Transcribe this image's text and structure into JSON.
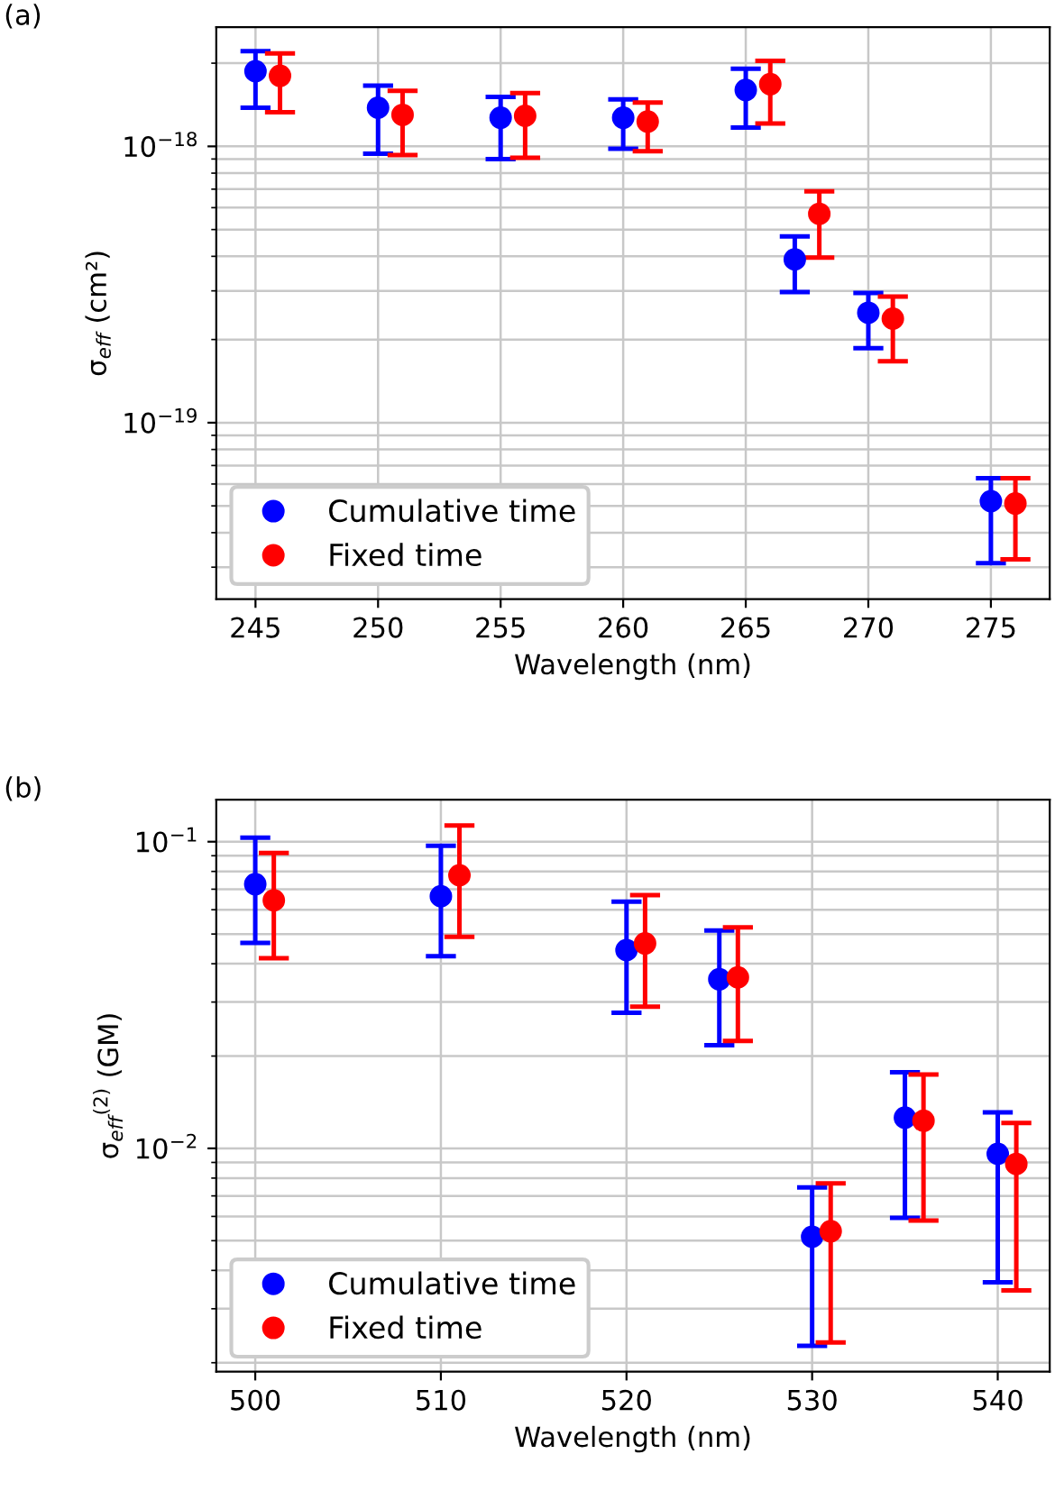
{
  "chart_data": [
    {
      "type": "scatter",
      "title": "(a)",
      "xlabel": "Wavelength (nm)",
      "ylabel": "σ$_{eff}$ (cm²)",
      "log": "y",
      "grid": true,
      "legend": "bottom left",
      "marker": "circle",
      "xlim": [
        243.4,
        277.4
      ],
      "xticks": [
        245,
        250,
        255,
        260,
        265,
        270,
        275
      ],
      "ylim": [
        2.3e-20,
        2.7e-18
      ],
      "yticks": [
        {
          "value": 1e-19,
          "label": "10$^{−19}$"
        },
        {
          "value": 1e-18,
          "label": "10$^{−18}$"
        }
      ],
      "series": [
        {
          "name": "Cumulative time",
          "color": "#0000ff",
          "x": [
            245,
            250,
            255,
            260,
            265,
            267,
            270,
            275
          ],
          "values": [
            1.87e-18,
            1.38e-18,
            1.27e-18,
            1.27e-18,
            1.6e-18,
            3.9e-19,
            2.5e-19,
            5.2e-20
          ],
          "errors": [
            [
              1.38e-18,
              2.21e-18
            ],
            [
              9.4e-19,
              1.66e-18
            ],
            [
              9e-19,
              1.51e-18
            ],
            [
              9.8e-19,
              1.48e-18
            ],
            [
              1.17e-18,
              1.91e-18
            ],
            [
              2.97e-19,
              4.72e-19
            ],
            [
              1.86e-19,
              2.95e-19
            ],
            [
              3.1e-20,
              6.3e-20
            ]
          ]
        },
        {
          "name": "Fixed time",
          "color": "#ff0000",
          "x": [
            246,
            251,
            256,
            261,
            266,
            268,
            271,
            276
          ],
          "values": [
            1.8e-18,
            1.3e-18,
            1.29e-18,
            1.23e-18,
            1.68e-18,
            5.7e-19,
            2.38e-19,
            5.1e-20
          ],
          "errors": [
            [
              1.33e-18,
              2.17e-18
            ],
            [
              9.3e-19,
              1.59e-18
            ],
            [
              9.1e-19,
              1.56e-18
            ],
            [
              9.6e-19,
              1.44e-18
            ],
            [
              1.21e-18,
              2.04e-18
            ],
            [
              3.96e-19,
              6.87e-19
            ],
            [
              1.67e-19,
              2.86e-19
            ],
            [
              3.2e-20,
              6.3e-20
            ]
          ]
        }
      ]
    },
    {
      "type": "scatter",
      "title": "(b)",
      "xlabel": "Wavelength (nm)",
      "ylabel": "σ$_{eff}$$^{(2)}$ (GM)",
      "log": "y",
      "grid": true,
      "legend": "bottom left",
      "marker": "circle",
      "xlim": [
        497.9,
        542.8
      ],
      "xticks": [
        500,
        510,
        520,
        530,
        540
      ],
      "ylim": [
        0.00187,
        0.137
      ],
      "yticks": [
        {
          "value": 0.01,
          "label": "10$^{−2}$"
        },
        {
          "value": 0.1,
          "label": "10$^{−1}$"
        }
      ],
      "series": [
        {
          "name": "Cumulative time",
          "color": "#0000ff",
          "x": [
            500,
            510,
            520,
            525,
            530,
            535,
            540
          ],
          "values": [
            0.0727,
            0.0664,
            0.0443,
            0.0356,
            0.00515,
            0.0126,
            0.0096
          ],
          "errors": [
            [
              0.0468,
              0.103
            ],
            [
              0.0423,
              0.097
            ],
            [
              0.0277,
              0.0637
            ],
            [
              0.0217,
              0.0513
            ],
            [
              0.00227,
              0.00746
            ],
            [
              0.00594,
              0.0177
            ],
            [
              0.00366,
              0.0131
            ]
          ]
        },
        {
          "name": "Fixed time",
          "color": "#ff0000",
          "x": [
            501,
            511,
            521,
            526,
            531,
            536,
            541
          ],
          "values": [
            0.0644,
            0.0777,
            0.0466,
            0.0361,
            0.00537,
            0.0123,
            0.0089
          ],
          "errors": [
            [
              0.0417,
              0.0918
            ],
            [
              0.049,
              0.113
            ],
            [
              0.029,
              0.067
            ],
            [
              0.0224,
              0.0526
            ],
            [
              0.00233,
              0.00769
            ],
            [
              0.00582,
              0.0174
            ],
            [
              0.00344,
              0.0121
            ]
          ]
        }
      ]
    }
  ]
}
